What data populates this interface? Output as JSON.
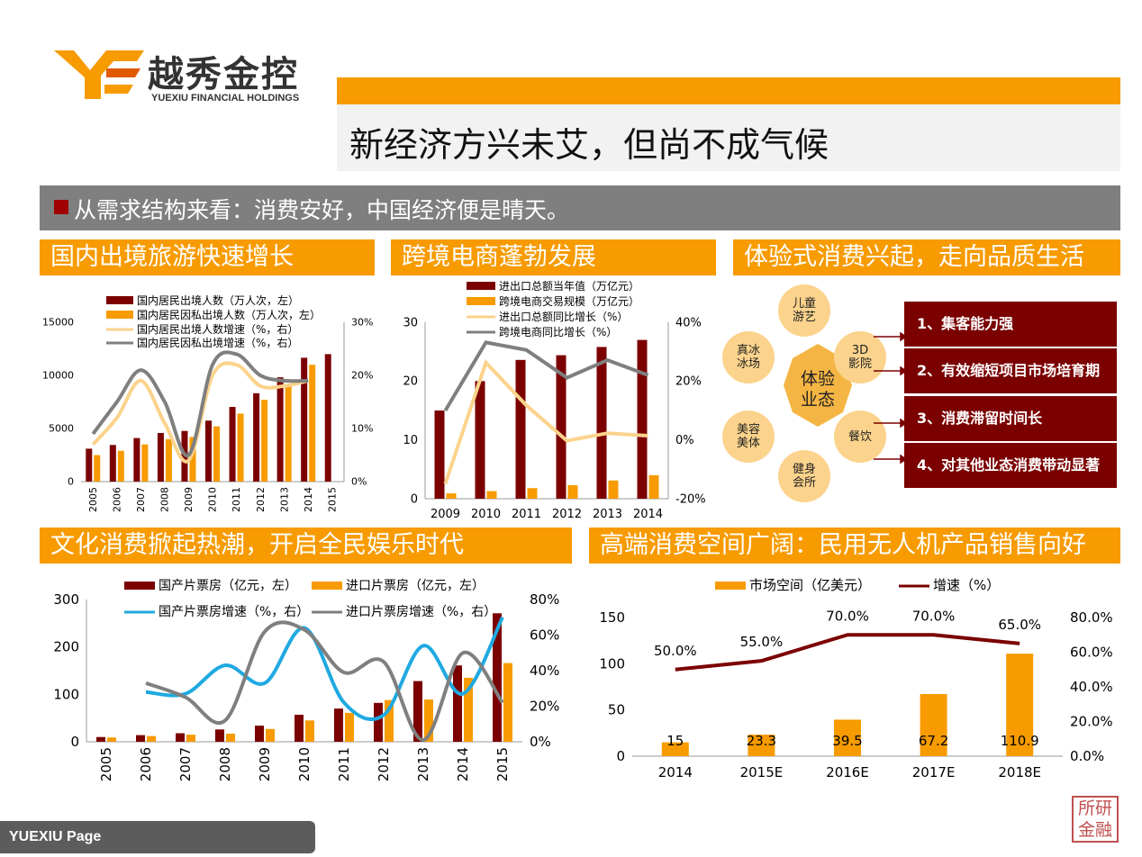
{
  "logo": {
    "cn": "越秀金控",
    "en": "YUEXIU FINANCIAL HOLDINGS"
  },
  "title": "新经济方兴未艾，但尚不成气候",
  "subtitle": "从需求结构来看：消费安好，中国经济便是晴天。",
  "sections": {
    "travel": "国内出境旅游快速增长",
    "ecommerce": "跨境电商蓬勃发展",
    "experience": "体验式消费兴起，走向品质生活",
    "culture": "文化消费掀起热潮，开启全民娱乐时代",
    "drone": "高端消费空间广阔：民用无人机产品销售向好"
  },
  "experience": {
    "center": "体验\n业态",
    "petals": [
      "儿童\n游艺",
      "3D\n影院",
      "餐饮",
      "健身\n会所",
      "美容\n美体",
      "真冰\n冰场"
    ],
    "items": [
      "1、集客能力强",
      "2、有效缩短项目市场培育期",
      "3、消费滞留时间长",
      "4、对其他业态消费带动显著"
    ]
  },
  "footer": "YUEXIU  Page",
  "stamp": "所研\n金融",
  "colors": {
    "orange": "#f79b00",
    "darkred": "#7b0000",
    "gray": "#7f7f7f",
    "blue": "#1fa9e1",
    "lightorange": "#fbd38c"
  },
  "chart_data": [
    {
      "type": "bar",
      "id": "travel",
      "categories": [
        "2005",
        "2006",
        "2007",
        "2008",
        "2009",
        "2010",
        "2011",
        "2012",
        "2013",
        "2014",
        "2015"
      ],
      "series": [
        {
          "name": "国内居民出境人数（万人次，左）",
          "kind": "bar",
          "axis": "left",
          "color": "#7b0000",
          "values": [
            3100,
            3450,
            4100,
            4580,
            4770,
            5740,
            7030,
            8320,
            9820,
            11660,
            12000
          ]
        },
        {
          "name": "国内居民因私出境人数（万人次，左）",
          "kind": "bar",
          "axis": "left",
          "color": "#f79b00",
          "values": [
            2500,
            2900,
            3500,
            4000,
            4200,
            5200,
            6400,
            7700,
            9200,
            11000,
            null
          ]
        },
        {
          "name": "国内居民出境人数增速（%，右）",
          "kind": "line",
          "axis": "right",
          "color": "#fbd38c",
          "values": [
            7,
            12,
            19,
            11,
            4,
            20,
            22,
            18,
            18,
            19,
            null
          ]
        },
        {
          "name": "国内居民因私出境增速（%，右）",
          "kind": "line",
          "axis": "right",
          "color": "#7f7f7f",
          "values": [
            9,
            15,
            21,
            15,
            5,
            22,
            24,
            20,
            19,
            19,
            null
          ]
        }
      ],
      "left_ticks": [
        "0",
        "5000",
        "10000",
        "15000"
      ],
      "right_ticks": [
        "0%",
        "10%",
        "20%",
        "30%"
      ],
      "ylim": [
        0,
        15000
      ],
      "y2lim": [
        0,
        30
      ]
    },
    {
      "type": "bar",
      "id": "ecommerce",
      "categories": [
        "2009",
        "2010",
        "2011",
        "2012",
        "2013",
        "2014"
      ],
      "series": [
        {
          "name": "进出口总额当年值（万亿元）",
          "kind": "bar",
          "axis": "left",
          "color": "#7b0000",
          "values": [
            15,
            20,
            23.6,
            24.4,
            25.8,
            27
          ]
        },
        {
          "name": "跨境电商交易规模（万亿元）",
          "kind": "bar",
          "axis": "left",
          "color": "#f79b00",
          "values": [
            0.9,
            1.3,
            1.8,
            2.3,
            3.1,
            4
          ]
        },
        {
          "name": "进出口总额同比增长（%）",
          "kind": "line",
          "axis": "right",
          "color": "#fbd38c",
          "values": [
            -14,
            34,
            17,
            3,
            6,
            5
          ]
        },
        {
          "name": "跨境电商同比增长（%）",
          "kind": "line",
          "axis": "right",
          "color": "#7f7f7f",
          "values": [
            15,
            42,
            39,
            28,
            35,
            29
          ]
        }
      ],
      "left_ticks": [
        "0",
        "10",
        "20",
        "30"
      ],
      "right_ticks": [
        "-20%",
        "0%",
        "20%",
        "40%"
      ],
      "ylim": [
        0,
        30
      ],
      "y2lim": [
        -20,
        50
      ]
    },
    {
      "type": "bar",
      "id": "culture",
      "categories": [
        "2005",
        "2006",
        "2007",
        "2008",
        "2009",
        "2010",
        "2011",
        "2012",
        "2013",
        "2014",
        "2015"
      ],
      "series": [
        {
          "name": "国产片票房（亿元，左）",
          "kind": "bar",
          "axis": "left",
          "color": "#7b0000",
          "values": [
            10,
            14,
            18,
            26,
            34,
            57,
            70,
            82,
            128,
            161,
            271
          ]
        },
        {
          "name": "进口片票房（亿元，左）",
          "kind": "bar",
          "axis": "left",
          "color": "#f79b00",
          "values": [
            9,
            12,
            15,
            17,
            27,
            45,
            61,
            88,
            89,
            135,
            166
          ]
        },
        {
          "name": "国产片票房增速（%，右）",
          "kind": "line",
          "axis": "right",
          "color": "#1fa9e1",
          "values": [
            null,
            28,
            27,
            43,
            33,
            64,
            22,
            15,
            54,
            27,
            70
          ]
        },
        {
          "name": "进口片票房增速（%，右）",
          "kind": "line",
          "axis": "right",
          "color": "#7f7f7f",
          "values": [
            null,
            33,
            25,
            12,
            62,
            63,
            39,
            45,
            1,
            50,
            22
          ]
        }
      ],
      "left_ticks": [
        "0",
        "100",
        "200",
        "300"
      ],
      "right_ticks": [
        "0%",
        "20%",
        "40%",
        "60%",
        "80%"
      ],
      "ylim": [
        0,
        300
      ],
      "y2lim": [
        0,
        80
      ]
    },
    {
      "type": "bar",
      "id": "drone",
      "categories": [
        "2014",
        "2015E",
        "2016E",
        "2017E",
        "2018E"
      ],
      "series": [
        {
          "name": "市场空间（亿美元）",
          "kind": "bar",
          "axis": "left",
          "color": "#f79b00",
          "values": [
            15,
            23.3,
            39.5,
            67.2,
            110.9
          ],
          "labels": [
            "15",
            "23.3",
            "39.5",
            "67.2",
            "110.9"
          ]
        },
        {
          "name": "增速（%）",
          "kind": "line",
          "axis": "right",
          "color": "#7b0000",
          "values": [
            50,
            55,
            70,
            70,
            65
          ],
          "labels": [
            "50.0%",
            "55.0%",
            "70.0%",
            "70.0%",
            "65.0%"
          ]
        }
      ],
      "left_ticks": [
        "0",
        "50",
        "100",
        "150"
      ],
      "right_ticks": [
        "0.0%",
        "20.0%",
        "40.0%",
        "60.0%",
        "80.0%"
      ],
      "ylim": [
        0,
        150
      ],
      "y2lim": [
        0,
        80
      ]
    }
  ]
}
